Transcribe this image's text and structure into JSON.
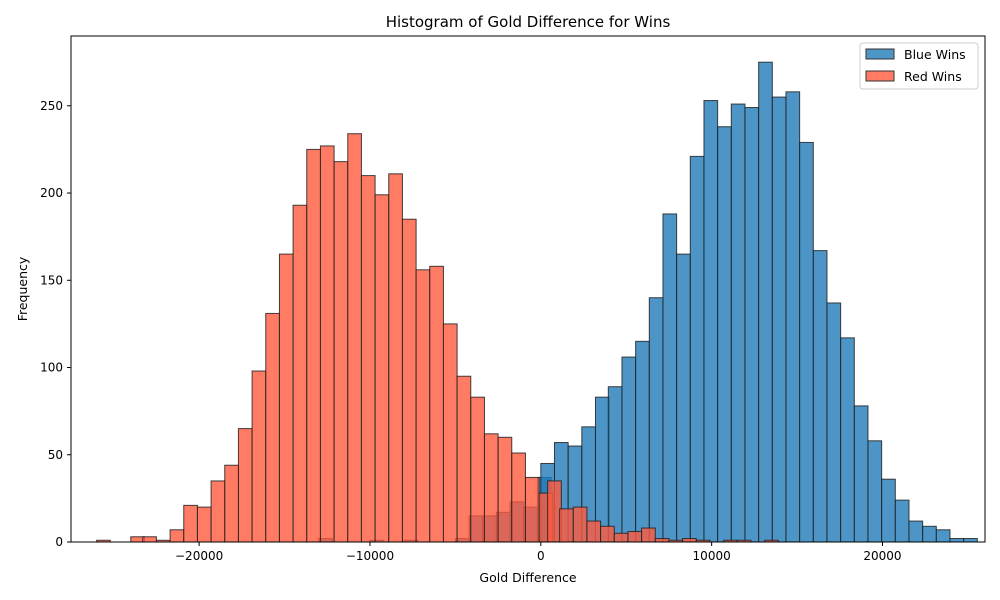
{
  "chart_data": {
    "type": "histogram",
    "title": "Histogram of Gold Difference for Wins",
    "xlabel": "Gold Difference",
    "ylabel": "Frequency",
    "xlim": [
      -27500,
      26000
    ],
    "ylim": [
      0,
      290
    ],
    "xticks": [
      -20000,
      -10000,
      0,
      10000,
      20000
    ],
    "yticks": [
      0,
      50,
      100,
      150,
      200,
      250
    ],
    "grid": false,
    "legend_position": "top-right",
    "series": [
      {
        "name": "Blue Wins",
        "color": "#1f7ab8",
        "bins": [
          [
            -13000,
            2
          ],
          [
            -10000,
            1
          ],
          [
            -8000,
            1
          ],
          [
            -5000,
            2
          ],
          [
            -4200,
            15
          ],
          [
            -3400,
            15
          ],
          [
            -2600,
            17
          ],
          [
            -1800,
            23
          ],
          [
            -1000,
            20
          ],
          [
            -200,
            37
          ],
          [
            0,
            45
          ],
          [
            800,
            57
          ],
          [
            1600,
            55
          ],
          [
            2400,
            66
          ],
          [
            3200,
            83
          ],
          [
            3950,
            89
          ],
          [
            4750,
            106
          ],
          [
            5550,
            115
          ],
          [
            6350,
            140
          ],
          [
            7150,
            188
          ],
          [
            7950,
            165
          ],
          [
            8750,
            221
          ],
          [
            9550,
            253
          ],
          [
            10350,
            238
          ],
          [
            11150,
            251
          ],
          [
            11950,
            249
          ],
          [
            12750,
            275
          ],
          [
            13550,
            255
          ],
          [
            14350,
            258
          ],
          [
            15150,
            229
          ],
          [
            15950,
            167
          ],
          [
            16750,
            137
          ],
          [
            17550,
            117
          ],
          [
            18350,
            78
          ],
          [
            19150,
            58
          ],
          [
            19950,
            36
          ],
          [
            20750,
            24
          ],
          [
            21550,
            12
          ],
          [
            22350,
            9
          ],
          [
            23150,
            7
          ],
          [
            23950,
            2
          ],
          [
            24750,
            2
          ]
        ]
      },
      {
        "name": "Red Wins",
        "color": "#ff5a3d",
        "bins": [
          [
            -26000,
            1
          ],
          [
            -24000,
            3
          ],
          [
            -23300,
            3
          ],
          [
            -22500,
            1
          ],
          [
            -21700,
            7
          ],
          [
            -20900,
            21
          ],
          [
            -20100,
            20
          ],
          [
            -19300,
            35
          ],
          [
            -18500,
            44
          ],
          [
            -17700,
            65
          ],
          [
            -16900,
            98
          ],
          [
            -16100,
            131
          ],
          [
            -15300,
            165
          ],
          [
            -14500,
            193
          ],
          [
            -13700,
            225
          ],
          [
            -12900,
            227
          ],
          [
            -12100,
            218
          ],
          [
            -11300,
            234
          ],
          [
            -10500,
            210
          ],
          [
            -9700,
            199
          ],
          [
            -8900,
            211
          ],
          [
            -8100,
            185
          ],
          [
            -7300,
            156
          ],
          [
            -6500,
            158
          ],
          [
            -5700,
            125
          ],
          [
            -4900,
            95
          ],
          [
            -4100,
            83
          ],
          [
            -3300,
            62
          ],
          [
            -2500,
            60
          ],
          [
            -1700,
            51
          ],
          [
            -900,
            37
          ],
          [
            -100,
            28
          ],
          [
            400,
            35
          ],
          [
            1100,
            19
          ],
          [
            1900,
            20
          ],
          [
            2700,
            12
          ],
          [
            3500,
            9
          ],
          [
            4300,
            5
          ],
          [
            5100,
            6
          ],
          [
            5900,
            8
          ],
          [
            6700,
            2
          ],
          [
            7500,
            1
          ],
          [
            8300,
            2
          ],
          [
            9100,
            1
          ],
          [
            10700,
            1
          ],
          [
            11500,
            1
          ],
          [
            13100,
            1
          ]
        ]
      }
    ]
  }
}
